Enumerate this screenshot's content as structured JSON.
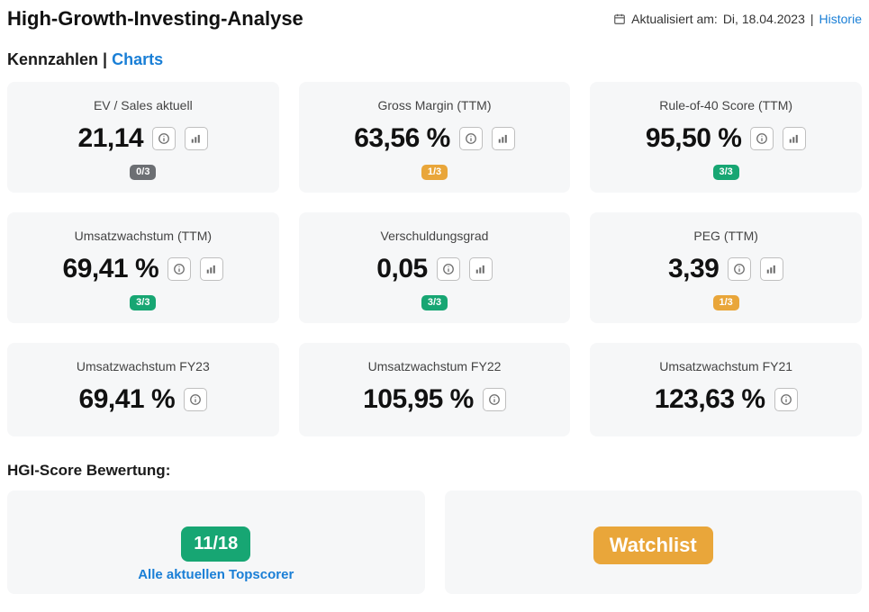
{
  "header": {
    "title": "High-Growth-Investing-Analyse",
    "updated_prefix": "Aktualisiert am:",
    "updated_date": "Di, 18.04.2023",
    "history_link": "Historie"
  },
  "tabs": {
    "active": "Kennzahlen",
    "separator": "|",
    "other": "Charts"
  },
  "colors": {
    "card_bg": "#f6f7f8",
    "link": "#1a7fd6",
    "badge_gray": "#6c6f73",
    "badge_amber": "#e9a63a",
    "badge_green": "#17a673"
  },
  "metrics": [
    {
      "label": "EV / Sales aktuell",
      "value": "21,14",
      "info": true,
      "chart": true,
      "badge": "0/3",
      "badge_color": "#6c6f73"
    },
    {
      "label": "Gross Margin (TTM)",
      "value": "63,56 %",
      "info": true,
      "chart": true,
      "badge": "1/3",
      "badge_color": "#e9a63a"
    },
    {
      "label": "Rule-of-40 Score (TTM)",
      "value": "95,50 %",
      "info": true,
      "chart": true,
      "badge": "3/3",
      "badge_color": "#17a673"
    },
    {
      "label": "Umsatzwachstum (TTM)",
      "value": "69,41 %",
      "info": true,
      "chart": true,
      "badge": "3/3",
      "badge_color": "#17a673"
    },
    {
      "label": "Verschuldungsgrad",
      "value": "0,05",
      "info": true,
      "chart": true,
      "badge": "3/3",
      "badge_color": "#17a673"
    },
    {
      "label": "PEG (TTM)",
      "value": "3,39",
      "info": true,
      "chart": true,
      "badge": "1/3",
      "badge_color": "#e9a63a"
    },
    {
      "label": "Umsatzwachstum FY23",
      "value": "69,41 %",
      "info": true,
      "chart": false,
      "badge": null,
      "badge_color": null
    },
    {
      "label": "Umsatzwachstum FY22",
      "value": "105,95 %",
      "info": true,
      "chart": false,
      "badge": null,
      "badge_color": null
    },
    {
      "label": "Umsatzwachstum FY21",
      "value": "123,63 %",
      "info": true,
      "chart": false,
      "badge": null,
      "badge_color": null
    }
  ],
  "score": {
    "section_title": "HGI-Score Bewertung:",
    "value": "11/18",
    "link_text": "Alle aktuellen Topscorer",
    "watchlist_label": "Watchlist"
  }
}
